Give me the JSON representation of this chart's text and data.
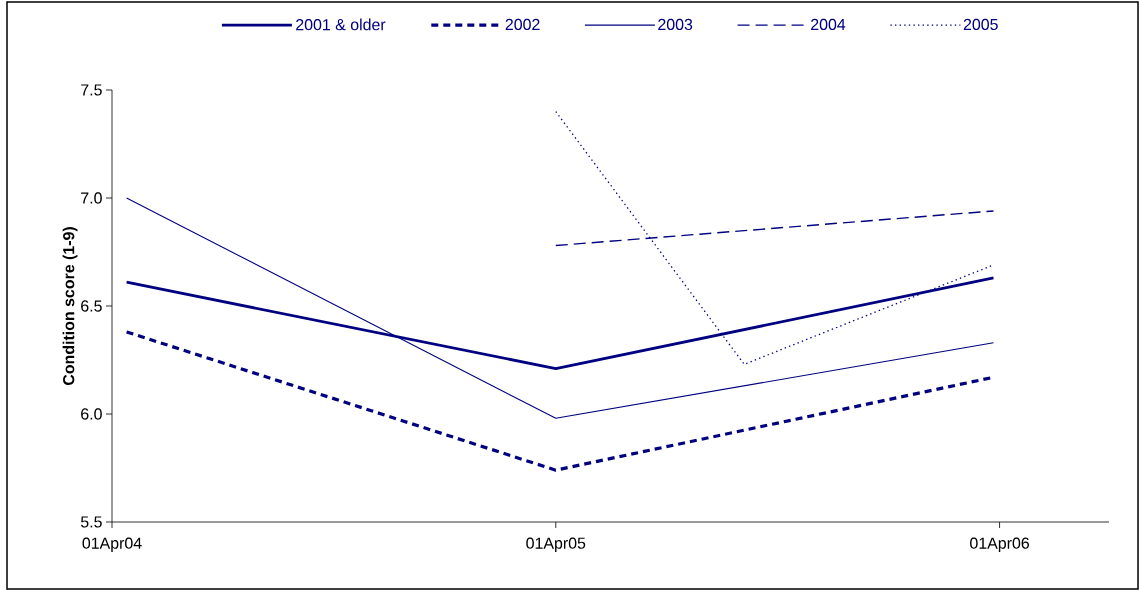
{
  "chart_data": {
    "type": "line",
    "ylabel": "Condition score (1-9)",
    "legend": "top",
    "grid": false,
    "xlim": [
      "2004-04-01",
      "2006-06-30"
    ],
    "xticks": [
      {
        "value": "2004-04-01",
        "label": "01Apr04"
      },
      {
        "value": "2005-04-01",
        "label": "01Apr05"
      },
      {
        "value": "2006-04-01",
        "label": "01Apr06"
      }
    ],
    "ylim": [
      5.5,
      7.5
    ],
    "yticks": [
      5.5,
      {
        "value": 6,
        "label": "6.0"
      },
      6.5,
      {
        "value": 7,
        "label": "7.0"
      },
      7.5
    ],
    "series": [
      {
        "name": "2001 & older",
        "color": "#000080",
        "line_style": "solid",
        "x": [
          "2004-04-13",
          "2005-04-01",
          "2006-03-27"
        ],
        "values": [
          6.61,
          6.21,
          6.63
        ]
      },
      {
        "name": "2002",
        "color": "#000080",
        "line_style": "dashed",
        "x": [
          "2004-04-13",
          "2005-04-01",
          "2006-03-27"
        ],
        "values": [
          6.38,
          5.74,
          6.17
        ]
      },
      {
        "name": "2003",
        "color": "#000080",
        "line_style": "solid",
        "x": [
          "2004-04-13",
          "2005-04-01",
          "2006-03-27"
        ],
        "values": [
          7.0,
          5.98,
          6.33
        ]
      },
      {
        "name": "2004",
        "color": "#000080",
        "line_style": "dashed",
        "x": [
          "2005-04-01",
          "2006-03-27"
        ],
        "values": [
          6.78,
          6.94
        ]
      },
      {
        "name": "2005",
        "color": "#000080",
        "line_style": "dotted",
        "x": [
          "2005-04-01",
          "2005-09-03",
          "2006-03-27"
        ],
        "values": [
          7.4,
          6.23,
          6.69
        ]
      }
    ]
  }
}
